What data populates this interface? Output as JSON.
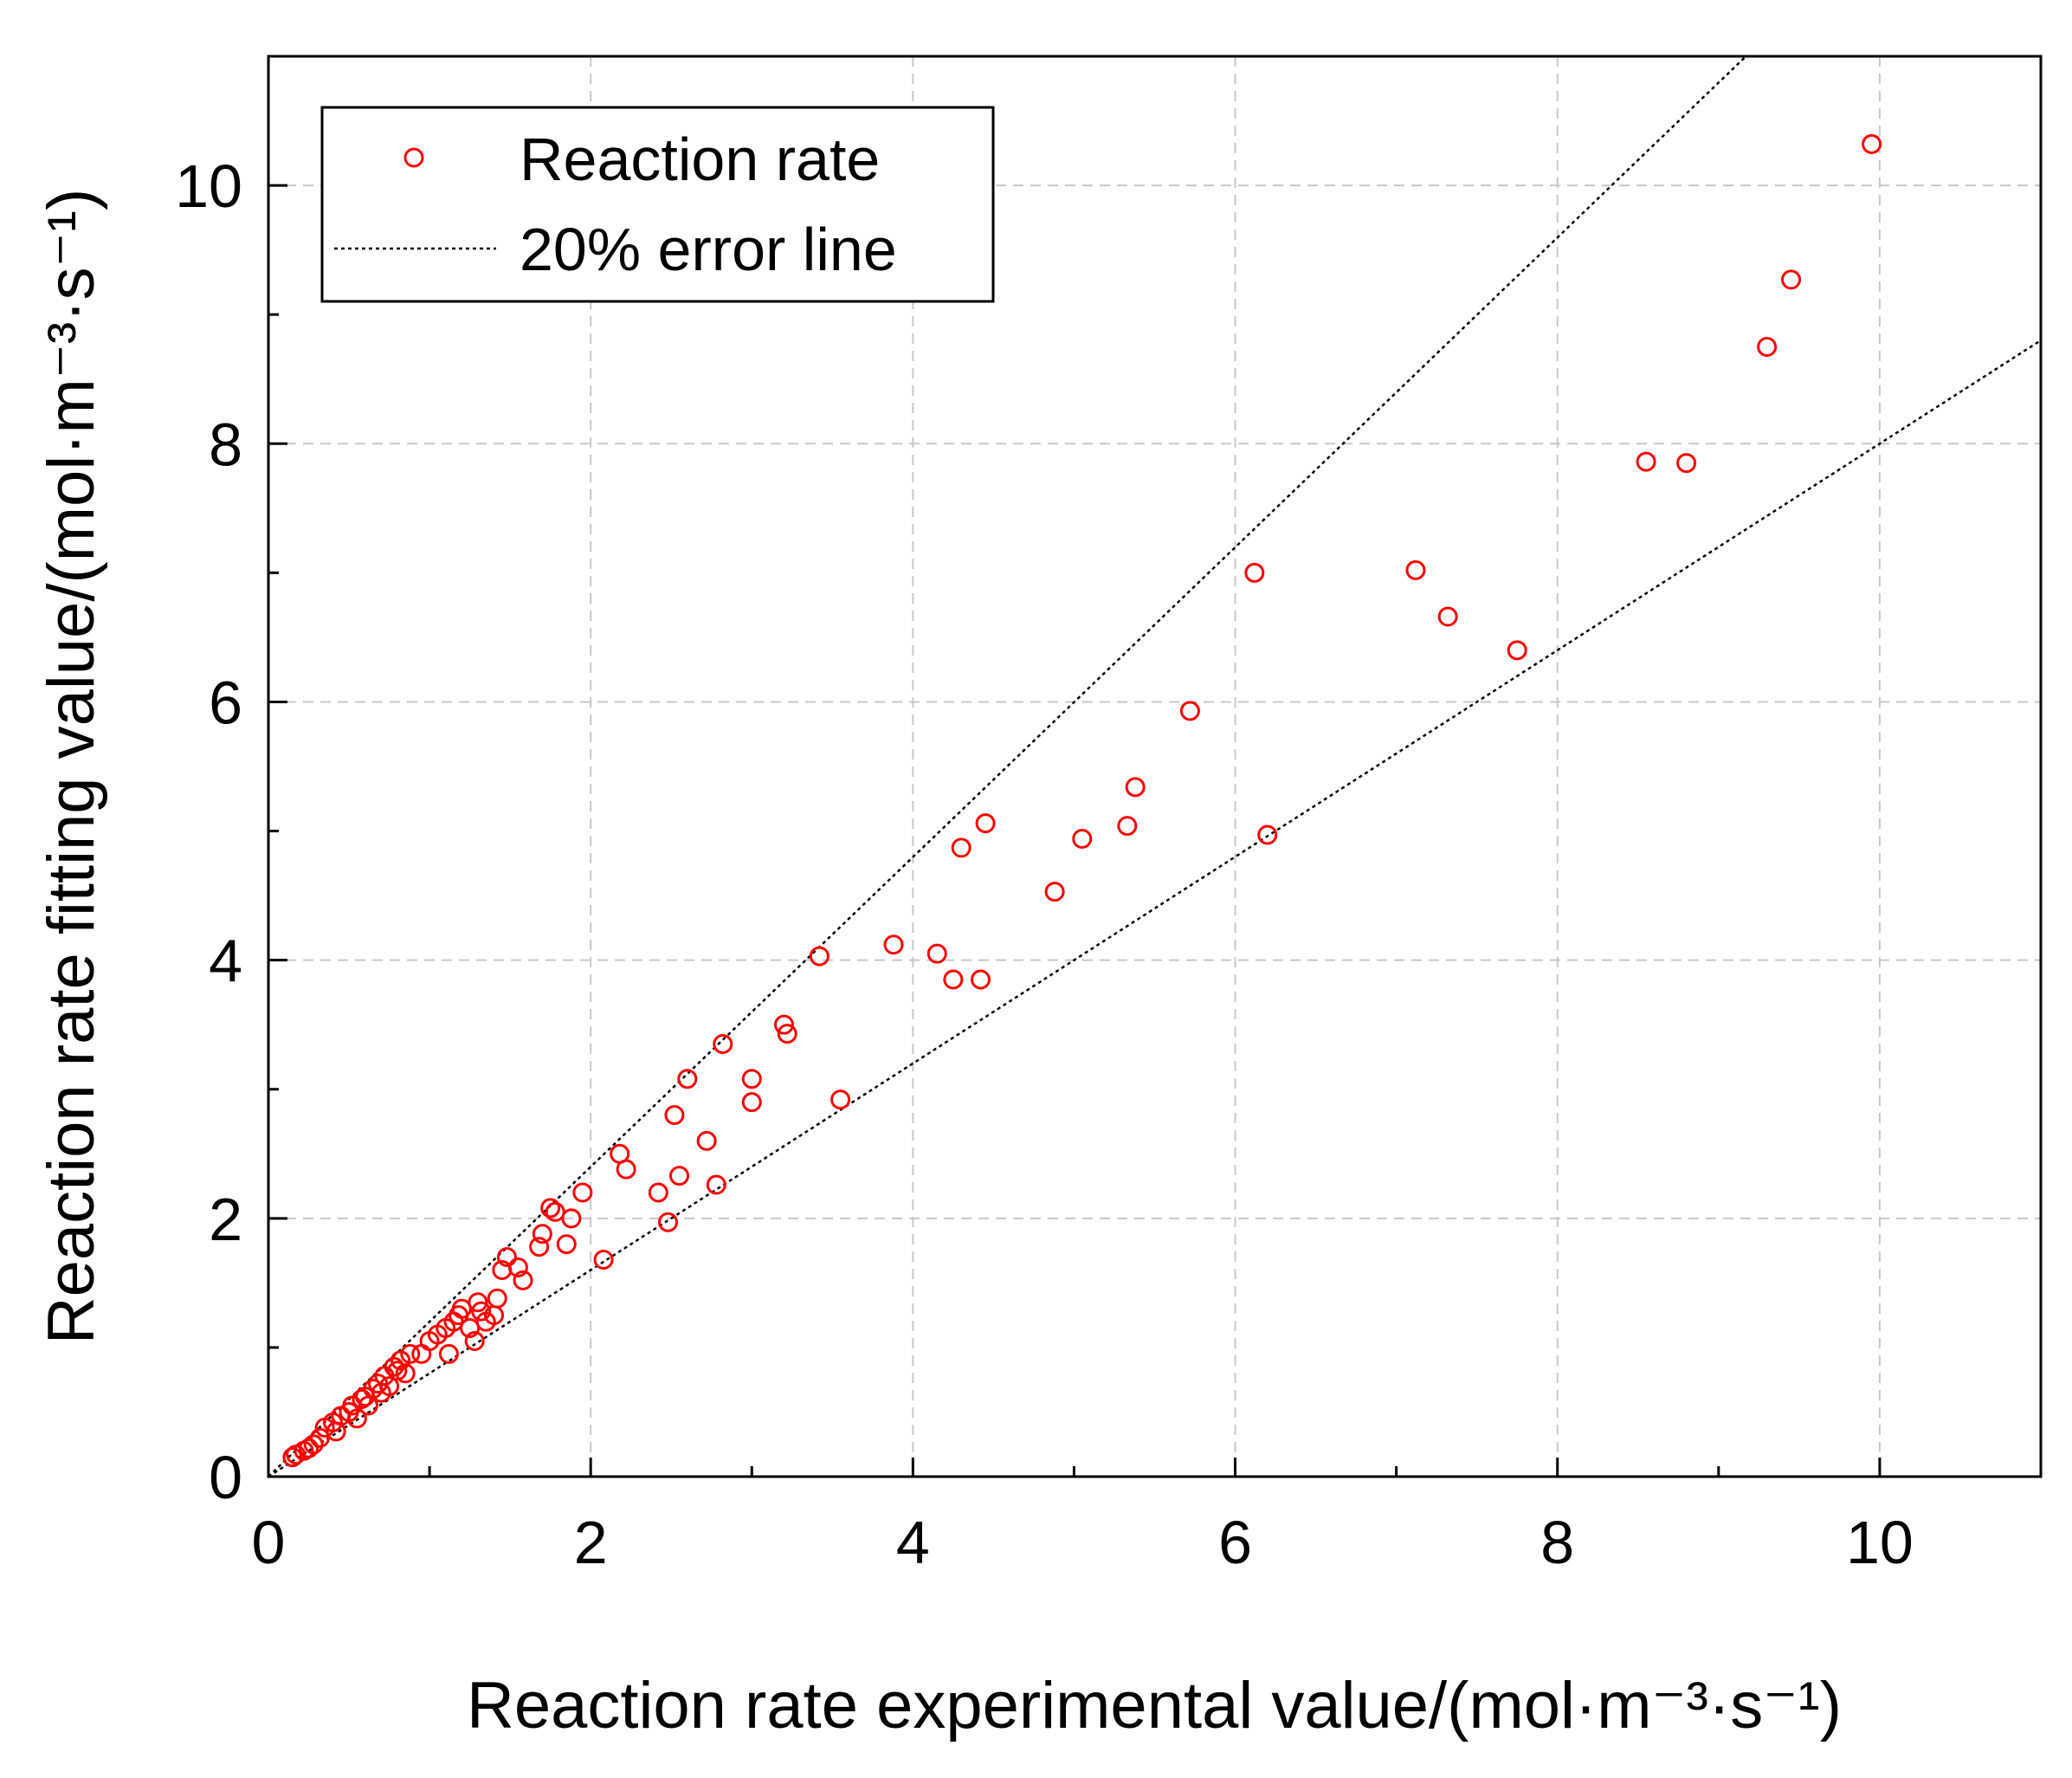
{
  "chart_data": {
    "type": "scatter",
    "xlabel": "Reaction rate experimental value/(mol·m⁻³·s⁻¹)",
    "ylabel": "Reaction rate fitting value/(mol·m⁻³·s⁻¹)",
    "xlim": [
      0,
      11
    ],
    "ylim": [
      0,
      11
    ],
    "xticks": [
      0,
      2,
      4,
      6,
      8,
      10
    ],
    "yticks": [
      0,
      2,
      4,
      6,
      8,
      10
    ],
    "xtick_labels": [
      "0",
      "2",
      "4",
      "6",
      "8",
      "10"
    ],
    "ytick_labels": [
      "0",
      "2",
      "4",
      "6",
      "8",
      "10"
    ],
    "grid": true,
    "legend_position": "top-left",
    "colors": {
      "points": "#ff0000",
      "lines": "#000000",
      "grid": "#c8c8c8"
    },
    "series": [
      {
        "name": "Reaction rate",
        "marker": "open-circle",
        "points": [
          [
            0.15,
            0.15
          ],
          [
            0.17,
            0.17
          ],
          [
            0.22,
            0.2
          ],
          [
            0.25,
            0.22
          ],
          [
            0.28,
            0.25
          ],
          [
            0.32,
            0.3
          ],
          [
            0.35,
            0.38
          ],
          [
            0.4,
            0.42
          ],
          [
            0.42,
            0.35
          ],
          [
            0.45,
            0.47
          ],
          [
            0.5,
            0.5
          ],
          [
            0.52,
            0.55
          ],
          [
            0.55,
            0.45
          ],
          [
            0.58,
            0.6
          ],
          [
            0.6,
            0.62
          ],
          [
            0.62,
            0.55
          ],
          [
            0.65,
            0.68
          ],
          [
            0.68,
            0.72
          ],
          [
            0.7,
            0.65
          ],
          [
            0.72,
            0.78
          ],
          [
            0.75,
            0.7
          ],
          [
            0.78,
            0.85
          ],
          [
            0.8,
            0.82
          ],
          [
            0.82,
            0.9
          ],
          [
            0.85,
            0.8
          ],
          [
            0.88,
            0.95
          ],
          [
            0.95,
            0.95
          ],
          [
            1.0,
            1.05
          ],
          [
            1.05,
            1.1
          ],
          [
            1.1,
            1.15
          ],
          [
            1.12,
            0.95
          ],
          [
            1.15,
            1.2
          ],
          [
            1.18,
            1.25
          ],
          [
            1.2,
            1.3
          ],
          [
            1.25,
            1.15
          ],
          [
            1.28,
            1.05
          ],
          [
            1.3,
            1.35
          ],
          [
            1.32,
            1.28
          ],
          [
            1.35,
            1.2
          ],
          [
            1.4,
            1.25
          ],
          [
            1.42,
            1.38
          ],
          [
            1.45,
            1.6
          ],
          [
            1.48,
            1.7
          ],
          [
            1.55,
            1.62
          ],
          [
            1.58,
            1.52
          ],
          [
            1.68,
            1.78
          ],
          [
            1.7,
            1.88
          ],
          [
            1.75,
            2.08
          ],
          [
            1.78,
            2.05
          ],
          [
            1.85,
            1.8
          ],
          [
            1.88,
            2.0
          ],
          [
            1.95,
            2.2
          ],
          [
            2.08,
            1.68
          ],
          [
            2.18,
            2.5
          ],
          [
            2.22,
            2.38
          ],
          [
            2.42,
            2.2
          ],
          [
            2.48,
            1.97
          ],
          [
            2.52,
            2.8
          ],
          [
            2.55,
            2.33
          ],
          [
            2.6,
            3.08
          ],
          [
            2.72,
            2.6
          ],
          [
            2.78,
            2.26
          ],
          [
            2.82,
            3.35
          ],
          [
            3.0,
            3.08
          ],
          [
            3.0,
            2.9
          ],
          [
            3.2,
            3.5
          ],
          [
            3.22,
            3.43
          ],
          [
            3.42,
            4.03
          ],
          [
            3.55,
            2.92
          ],
          [
            3.88,
            4.12
          ],
          [
            4.15,
            4.05
          ],
          [
            4.25,
            3.85
          ],
          [
            4.3,
            4.87
          ],
          [
            4.42,
            3.85
          ],
          [
            4.45,
            5.06
          ],
          [
            4.88,
            4.53
          ],
          [
            5.05,
            4.94
          ],
          [
            5.33,
            5.04
          ],
          [
            5.38,
            5.34
          ],
          [
            5.72,
            5.93
          ],
          [
            6.12,
            7.0
          ],
          [
            6.2,
            4.97
          ],
          [
            7.12,
            7.02
          ],
          [
            7.32,
            6.66
          ],
          [
            7.75,
            6.4
          ],
          [
            8.55,
            7.86
          ],
          [
            8.8,
            7.85
          ],
          [
            9.3,
            8.75
          ],
          [
            9.45,
            9.27
          ],
          [
            9.95,
            10.32
          ]
        ]
      },
      {
        "name": "20% error line",
        "line_style": "dotted",
        "lines": [
          {
            "x": [
              0,
              9.17
            ],
            "y": [
              0,
              11
            ]
          },
          {
            "x": [
              0,
              11
            ],
            "y": [
              0,
              8.8
            ]
          }
        ]
      }
    ]
  }
}
